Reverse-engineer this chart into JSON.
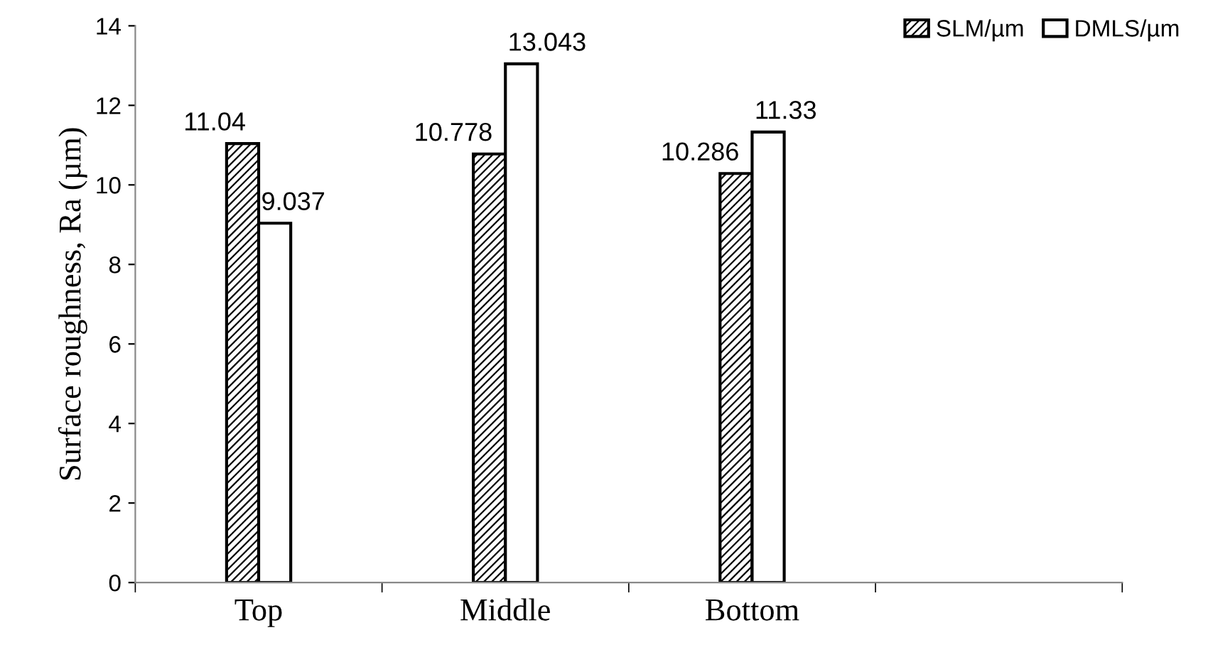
{
  "chart_data": {
    "type": "bar",
    "ylabel": "Surface roughness, Ra (µm)",
    "categories": [
      "Top",
      "Middle",
      "Bottom",
      null
    ],
    "series": [
      {
        "name": "SLM/µm",
        "color": "#000000",
        "values": [
          11.04,
          10.778,
          10.286,
          null
        ]
      },
      {
        "name": "DMLS/µm",
        "color": "#ffffff",
        "values": [
          9.037,
          13.043,
          11.33,
          null
        ]
      }
    ],
    "ylim": [
      0,
      14
    ],
    "yticks": [
      0,
      2,
      4,
      6,
      8,
      10,
      12,
      14
    ],
    "data_labels": true,
    "legend": "top right",
    "grid": false
  }
}
